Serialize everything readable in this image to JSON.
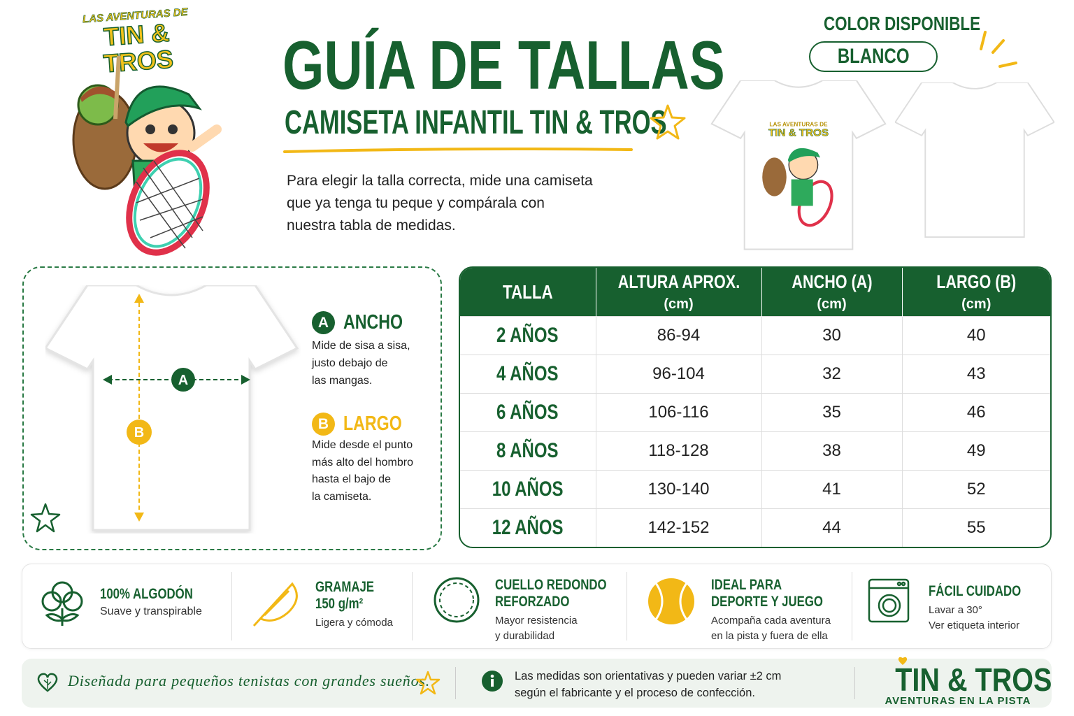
{
  "logo": {
    "line1": "LAS AVENTURAS DE",
    "line2": "TIN & TROS"
  },
  "header": {
    "title": "GUÍA DE TALLAS",
    "subtitle": "CAMISETA INFANTIL TIN & TROS",
    "intro": [
      "Para elegir la talla correcta, mide una camiseta",
      "que ya tenga tu peque y compárala con",
      "nuestra tabla de medidas."
    ]
  },
  "color": {
    "label": "COLOR DISPONIBLE",
    "value": "BLANCO"
  },
  "measure_guide": {
    "items": [
      {
        "badge": "A",
        "title": "ANCHO",
        "description": [
          "Mide de sisa a sisa,",
          "justo debajo de",
          "las mangas."
        ]
      },
      {
        "badge": "B",
        "title": "LARGO",
        "description": [
          "Mide desde el punto",
          "más alto del hombro",
          "hasta el bajo de",
          "la camiseta."
        ]
      }
    ]
  },
  "table": {
    "columns": [
      {
        "title": "TALLA"
      },
      {
        "title": "ALTURA APROX.",
        "unit": "(cm)"
      },
      {
        "title": "ANCHO (A)",
        "unit": "(cm)"
      },
      {
        "title": "LARGO (B)",
        "unit": "(cm)"
      }
    ],
    "rows": [
      [
        "2 AÑOS",
        "86-94",
        30,
        40
      ],
      [
        "4 AÑOS",
        "96-104",
        32,
        43
      ],
      [
        "6 AÑOS",
        "106-116",
        35,
        46
      ],
      [
        "8 AÑOS",
        "118-128",
        38,
        49
      ],
      [
        "10 AÑOS",
        "130-140",
        41,
        52
      ],
      [
        "12 AÑOS",
        "142-152",
        44,
        55
      ]
    ]
  },
  "features": [
    {
      "title": [
        "100% ALGODÓN"
      ],
      "description": [
        "Suave y transpirable"
      ]
    },
    {
      "title": [
        "GRAMAJE",
        "150 g/m²"
      ],
      "description": [
        "Ligera y cómoda"
      ]
    },
    {
      "title": [
        "CUELLO REDONDO",
        "REFORZADO"
      ],
      "description": [
        "Mayor resistencia",
        "y durabilidad"
      ]
    },
    {
      "title": [
        "IDEAL PARA",
        "DEPORTE Y JUEGO"
      ],
      "description": [
        "Acompaña cada aventura",
        "en la pista y fuera de ella"
      ]
    },
    {
      "title": [
        "FÁCIL CUIDADO"
      ],
      "description": [
        "Lavar a 30°",
        "Ver etiqueta interior"
      ]
    }
  ],
  "footer": {
    "slogan": "Diseñada para pequeños tenistas con grandes sueños.",
    "note": [
      "Las medidas son orientativas y pueden variar ±2 cm",
      "según el fabricante y el proceso de confección."
    ],
    "brand": "TIN & TROS",
    "tagline": "AVENTURAS EN LA PISTA"
  }
}
